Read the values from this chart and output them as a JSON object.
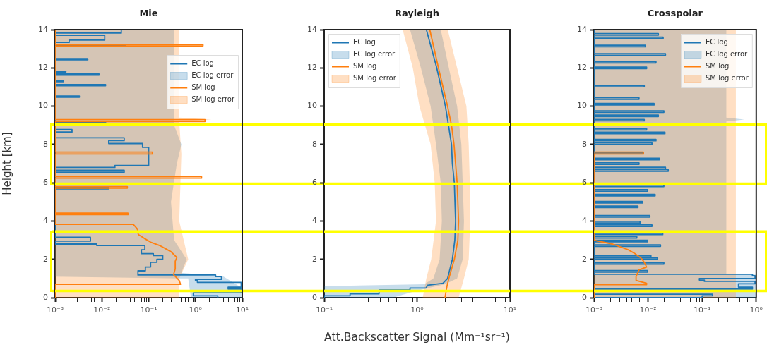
{
  "chart_data": [
    {
      "type": "line",
      "title": "Mie",
      "ylabel": "Height [km]",
      "log": "x",
      "legend": "top right",
      "xlim": [
        0.001,
        10
      ],
      "ylim": [
        0,
        14
      ],
      "yticks": [
        0,
        2,
        4,
        6,
        8,
        10,
        12,
        14
      ],
      "xticks": [
        {
          "value": 0.001,
          "label": "10⁻³"
        },
        {
          "value": 0.002,
          "label": null
        },
        {
          "value": 0.003,
          "label": null
        },
        {
          "value": 0.004,
          "label": null
        },
        {
          "value": 0.005,
          "label": null
        },
        {
          "value": 0.006,
          "label": null
        },
        {
          "value": 0.007,
          "label": null
        },
        {
          "value": 0.008,
          "label": null
        },
        {
          "value": 0.009,
          "label": null
        },
        {
          "value": 0.01,
          "label": "10⁻²"
        },
        {
          "value": 0.02,
          "label": null
        },
        {
          "value": 0.03,
          "label": null
        },
        {
          "value": 0.04,
          "label": null
        },
        {
          "value": 0.05,
          "label": null
        },
        {
          "value": 0.06,
          "label": null
        },
        {
          "value": 0.07,
          "label": null
        },
        {
          "value": 0.08,
          "label": null
        },
        {
          "value": 0.09,
          "label": null
        },
        {
          "value": 0.1,
          "label": "10⁻¹"
        },
        {
          "value": 0.2,
          "label": null
        },
        {
          "value": 0.3,
          "label": null
        },
        {
          "value": 0.4,
          "label": null
        },
        {
          "value": 0.5,
          "label": null
        },
        {
          "value": 0.6,
          "label": null
        },
        {
          "value": 0.7,
          "label": null
        },
        {
          "value": 0.8,
          "label": null
        },
        {
          "value": 0.9,
          "label": null
        },
        {
          "value": 1,
          "label": "10⁰"
        },
        {
          "value": 2,
          "label": null
        },
        {
          "value": 3,
          "label": null
        },
        {
          "value": 4,
          "label": null
        },
        {
          "value": 5,
          "label": null
        },
        {
          "value": 6,
          "label": null
        },
        {
          "value": 7,
          "label": null
        },
        {
          "value": 8,
          "label": null
        },
        {
          "value": 9,
          "label": null
        },
        {
          "value": 10,
          "label": "10¹"
        }
      ],
      "ref_lines": [
        {
          "axis": "y",
          "value": 9.05,
          "color": "#ffff00"
        },
        {
          "axis": "y",
          "value": 5.95,
          "color": "#ffff00"
        },
        {
          "axis": "y",
          "value": 3.45,
          "color": "#ffff00"
        },
        {
          "axis": "y",
          "value": 0.35,
          "color": "#ffff00"
        }
      ],
      "series": [
        {
          "name": "EC log",
          "color": "#1f77b4",
          "x": [
            3,
            3,
            0.9,
            0.9,
            9.5,
            9.5,
            5,
            5,
            9.5,
            9.5,
            1.1,
            1.1,
            1,
            1,
            3.6,
            3.6,
            2.7,
            2.7,
            0.059,
            0.059,
            0.085,
            0.085,
            0.11,
            0.11,
            0.15,
            0.15,
            0.2,
            0.2,
            0.126,
            0.126,
            0.07,
            0.07,
            0.083,
            0.083,
            0.0078,
            0.0078,
            0.001,
            0.001,
            0.0057,
            0.0057,
            0.001,
            0.001,
            0.014,
            0.014,
            0.001,
            0.001,
            0.03,
            0.03,
            0.001,
            0.001,
            0.019,
            0.019,
            0.1,
            0.1,
            0.074,
            0.074,
            0.014,
            0.014,
            0.03,
            0.03,
            0.001,
            0.001,
            0.0023,
            0.0023,
            0.001,
            0.001,
            0.012,
            0.012,
            0.001,
            0.001,
            0.0033,
            0.0033,
            0.001,
            0.001,
            0.012,
            0.012,
            0.001,
            0.001,
            0.0015,
            0.0015,
            0.001,
            0.001,
            0.0087,
            0.0087,
            0.001,
            0.001,
            0.0017,
            0.0017,
            0.001,
            0.001,
            0.005,
            0.005,
            0.001,
            0.001,
            0.032,
            0.032,
            0.001,
            0.001,
            0.002,
            0.002,
            0.0115,
            0.0115,
            0.001,
            0.001,
            0.026,
            0.026
          ],
          "values": [
            0,
            0.1,
            0.1,
            0.25,
            0.25,
            0.45,
            0.45,
            0.55,
            0.55,
            0.8,
            0.8,
            0.9,
            0.9,
            0.95,
            0.95,
            1.1,
            1.1,
            1.18,
            1.18,
            1.4,
            1.4,
            1.6,
            1.6,
            1.85,
            1.85,
            2,
            2,
            2.2,
            2.2,
            2.3,
            2.3,
            2.5,
            2.5,
            2.72,
            2.72,
            2.8,
            2.8,
            2.95,
            2.95,
            3.15,
            3.15,
            5.68,
            5.68,
            5.76,
            5.76,
            6.55,
            6.55,
            6.65,
            6.65,
            6.8,
            6.8,
            6.9,
            6.9,
            7.85,
            7.85,
            8.05,
            8.05,
            8.2,
            8.2,
            8.35,
            8.35,
            8.65,
            8.65,
            8.78,
            8.78,
            9.12,
            9.12,
            9.18,
            9.18,
            10.47,
            10.47,
            10.53,
            10.53,
            11.07,
            11.07,
            11.13,
            11.13,
            11.28,
            11.28,
            11.33,
            11.33,
            11.62,
            11.62,
            11.68,
            11.68,
            11.78,
            11.78,
            11.83,
            11.83,
            12.42,
            12.42,
            12.48,
            12.48,
            13.12,
            13.12,
            13.18,
            13.18,
            13.33,
            13.33,
            13.45,
            13.45,
            13.7,
            13.7,
            13.82,
            13.82,
            14
          ]
        },
        {
          "name": "EC log error",
          "type": "area",
          "color": "#1f77b4",
          "x": [
            10,
            10,
            4,
            0.5,
            0.65,
            0.35,
            0.3,
            0.4,
            0.5,
            0.35,
            0.35,
            0.001,
            0.001,
            0.7,
            0.8
          ],
          "values": [
            0,
            0.5,
            1.1,
            1.3,
            2,
            3,
            5,
            7,
            8,
            9,
            14,
            14,
            1.1,
            1.0,
            0
          ]
        },
        {
          "name": "SM log",
          "color": "#ff7f0e",
          "x": [
            0.001,
            0.001,
            0.48,
            0.45,
            0.34,
            0.37,
            0.37,
            0.4,
            0.3,
            0.18,
            0.11,
            0.08,
            0.06,
            0.057,
            0.047,
            0.001,
            0.001,
            0.036,
            0.036,
            0.001,
            0.001,
            0.035,
            0.035,
            0.001,
            0.001,
            1.35,
            1.35,
            0.001,
            0.001,
            0.12,
            0.12,
            0.001,
            0.001,
            1.6,
            1.6,
            0.001,
            0.001,
            1.45,
            1.45,
            0.001,
            0.001
          ],
          "values": [
            0,
            0.7,
            0.7,
            0.9,
            1.2,
            1.5,
            1.9,
            2.1,
            2.4,
            2.7,
            2.9,
            3.1,
            3.3,
            3.6,
            3.83,
            3.83,
            4.33,
            4.33,
            4.42,
            4.42,
            5.72,
            5.72,
            5.8,
            5.8,
            6.24,
            6.24,
            6.32,
            6.32,
            7.5,
            7.5,
            7.6,
            7.6,
            9.2,
            9.2,
            9.3,
            9.3,
            13.15,
            13.15,
            13.22,
            13.22,
            14
          ]
        },
        {
          "name": "SM log error",
          "type": "area",
          "color": "#ff7f0e",
          "x": [
            0.45,
            0.45,
            0.7,
            0.45,
            0.5,
            0.45,
            2.2,
            0.45,
            0.45,
            0.001,
            0.001
          ],
          "values": [
            0,
            1,
            2,
            4,
            7.5,
            9.2,
            9.3,
            9.4,
            14,
            14,
            0
          ]
        }
      ]
    },
    {
      "type": "line",
      "title": "Rayleigh",
      "xlabel": "Att.Backscatter Signal (Mm⁻¹sr⁻¹)",
      "log": "x",
      "legend": "top left",
      "xlim": [
        0.1,
        10
      ],
      "ylim": [
        0,
        14
      ],
      "yticks": [
        0,
        2,
        4,
        6,
        8,
        10,
        12,
        14
      ],
      "xticks": [
        {
          "value": 0.1,
          "label": "10⁻¹"
        },
        {
          "value": 0.2,
          "label": null
        },
        {
          "value": 0.3,
          "label": null
        },
        {
          "value": 0.4,
          "label": null
        },
        {
          "value": 0.5,
          "label": null
        },
        {
          "value": 0.6,
          "label": null
        },
        {
          "value": 0.7,
          "label": null
        },
        {
          "value": 0.8,
          "label": null
        },
        {
          "value": 0.9,
          "label": null
        },
        {
          "value": 1,
          "label": "10⁰"
        },
        {
          "value": 2,
          "label": null
        },
        {
          "value": 3,
          "label": null
        },
        {
          "value": 4,
          "label": null
        },
        {
          "value": 5,
          "label": null
        },
        {
          "value": 6,
          "label": null
        },
        {
          "value": 7,
          "label": null
        },
        {
          "value": 8,
          "label": null
        },
        {
          "value": 9,
          "label": null
        },
        {
          "value": 10,
          "label": "10¹"
        }
      ],
      "ref_lines": [
        {
          "axis": "y",
          "value": 9.05,
          "color": "#ffff00"
        },
        {
          "axis": "y",
          "value": 5.95,
          "color": "#ffff00"
        },
        {
          "axis": "y",
          "value": 3.45,
          "color": "#ffff00"
        },
        {
          "axis": "y",
          "value": 0.35,
          "color": "#ffff00"
        }
      ],
      "series": [
        {
          "name": "EC log",
          "color": "#1f77b4",
          "x": [
            0.1,
            0.1,
            0.19,
            0.19,
            0.39,
            0.39,
            0.84,
            0.84,
            1.25,
            1.3,
            1.9,
            2.13,
            2.4,
            2.55,
            2.6,
            2.52,
            2.4,
            2.35,
            2.18,
            2.02,
            1.63,
            1.26
          ],
          "values": [
            0,
            0.1,
            0.1,
            0.2,
            0.2,
            0.4,
            0.4,
            0.5,
            0.5,
            0.65,
            0.75,
            1,
            2,
            3,
            4,
            6,
            7,
            8,
            9,
            10,
            12,
            14
          ]
        },
        {
          "name": "EC log error",
          "type": "area",
          "color": "#1f77b4",
          "x": [
            0.55,
            0.9,
            1.3,
            2.0,
            2.7,
            3.1,
            3.2,
            3.1,
            3.0,
            2.7,
            2.2,
            1.8,
            0.84,
            1.1,
            1.4,
            1.6,
            1.8,
            1.85,
            1.75,
            1.5,
            1.2,
            0.1,
            0.1
          ],
          "values": [
            0,
            0.3,
            0.5,
            0.7,
            1,
            2,
            4,
            6,
            8,
            10,
            12,
            14,
            14,
            12,
            10,
            8,
            6,
            4,
            2,
            1,
            0.7,
            0.6,
            0
          ]
        },
        {
          "name": "SM log",
          "color": "#ff7f0e",
          "x": [
            2.0,
            2.1,
            2.2,
            2.52,
            2.75,
            2.8,
            2.7,
            2.6,
            2.5,
            2.35,
            2.13,
            1.7,
            1.37
          ],
          "values": [
            0,
            0.6,
            1,
            2,
            3,
            4,
            6,
            7,
            8,
            9,
            10,
            12,
            14
          ]
        },
        {
          "name": "SM log error",
          "type": "area",
          "color": "#ff7f0e",
          "x": [
            2.8,
            3.2,
            3.6,
            3.74,
            3.7,
            3.6,
            3.4,
            2.7,
            2.14,
            0.7,
            0.9,
            1.06,
            1.4,
            1.55,
            1.6,
            1.42,
            1.26,
            1.15
          ],
          "values": [
            0,
            1,
            2,
            4,
            6,
            8,
            10,
            12,
            14,
            14,
            12,
            10,
            8,
            6,
            4,
            2,
            1,
            0
          ]
        }
      ]
    },
    {
      "type": "line",
      "title": "Crosspolar",
      "log": "x",
      "legend": "top right",
      "xlim": [
        0.001,
        1
      ],
      "ylim": [
        0,
        14
      ],
      "yticks": [
        0,
        2,
        4,
        6,
        8,
        10,
        12,
        14
      ],
      "xticks": [
        {
          "value": 0.001,
          "label": "10⁻³"
        },
        {
          "value": 0.002,
          "label": null
        },
        {
          "value": 0.003,
          "label": null
        },
        {
          "value": 0.004,
          "label": null
        },
        {
          "value": 0.005,
          "label": null
        },
        {
          "value": 0.006,
          "label": null
        },
        {
          "value": 0.007,
          "label": null
        },
        {
          "value": 0.008,
          "label": null
        },
        {
          "value": 0.009,
          "label": null
        },
        {
          "value": 0.01,
          "label": "10⁻²"
        },
        {
          "value": 0.02,
          "label": null
        },
        {
          "value": 0.03,
          "label": null
        },
        {
          "value": 0.04,
          "label": null
        },
        {
          "value": 0.05,
          "label": null
        },
        {
          "value": 0.06,
          "label": null
        },
        {
          "value": 0.07,
          "label": null
        },
        {
          "value": 0.08,
          "label": null
        },
        {
          "value": 0.09,
          "label": null
        },
        {
          "value": 0.1,
          "label": "10⁻¹"
        },
        {
          "value": 0.2,
          "label": null
        },
        {
          "value": 0.3,
          "label": null
        },
        {
          "value": 0.4,
          "label": null
        },
        {
          "value": 0.5,
          "label": null
        },
        {
          "value": 0.6,
          "label": null
        },
        {
          "value": 0.7,
          "label": null
        },
        {
          "value": 0.8,
          "label": null
        },
        {
          "value": 0.9,
          "label": null
        },
        {
          "value": 1,
          "label": "10⁰"
        }
      ],
      "ref_lines": [
        {
          "axis": "y",
          "value": 9.05,
          "color": "#ffff00"
        },
        {
          "axis": "y",
          "value": 5.95,
          "color": "#ffff00"
        },
        {
          "axis": "y",
          "value": 3.45,
          "color": "#ffff00"
        },
        {
          "axis": "y",
          "value": 0.35,
          "color": "#ffff00"
        }
      ],
      "series": [
        {
          "name": "EC log",
          "color": "#1f77b4",
          "x": [
            0.001,
            0.1,
            0.1,
            0.155,
            0.155,
            0.001,
            0.001,
            0.85,
            0.85,
            0.47,
            0.47,
            0.95,
            0.95,
            0.11,
            0.11,
            0.089,
            0.089,
            0.95,
            0.95,
            0.85,
            0.85,
            0.001,
            0.001,
            0.0098,
            0.0098,
            0.001,
            0.001,
            0.0196,
            0.0196,
            0.001,
            0.001,
            0.015,
            0.015,
            0.001,
            0.001,
            0.0113,
            0.0113,
            0.001,
            0.001,
            0.017,
            0.017,
            0.001,
            0.001,
            0.0098,
            0.0098,
            0.001,
            0.001,
            0.0062,
            0.0062,
            0.001,
            0.001,
            0.0187,
            0.0187,
            0.001,
            0.001,
            0.0118,
            0.0118,
            0.001,
            0.001,
            0.0071,
            0.0071,
            0.001,
            0.001,
            0.0108,
            0.0108,
            0.001,
            0.001,
            0.0065,
            0.0065,
            0.001,
            0.001,
            0.0078,
            0.0078,
            0.001,
            0.001,
            0.0135,
            0.0135,
            0.001,
            0.001,
            0.0098,
            0.0098,
            0.001,
            0.001,
            0.0196,
            0.0196,
            0.001,
            0.001,
            0.0236,
            0.0236,
            0.001,
            0.001,
            0.021,
            0.021,
            0.001,
            0.001,
            0.0068,
            0.0068,
            0.001,
            0.001,
            0.0162,
            0.0162,
            0.001,
            0.001,
            0.0082,
            0.0082,
            0.001,
            0.001,
            0.0118,
            0.0118,
            0.001,
            0.001,
            0.014,
            0.014,
            0.001,
            0.001,
            0.0205,
            0.0205,
            0.001,
            0.001,
            0.0094,
            0.0094,
            0.001,
            0.001,
            0.0085,
            0.0085,
            0.001,
            0.001,
            0.0155,
            0.0155,
            0.001,
            0.001,
            0.0196,
            0.0196,
            0.001,
            0.001,
            0.0129,
            0.0129,
            0.001,
            0.001,
            0.0068,
            0.0068,
            0.001,
            0.001,
            0.0085,
            0.0085,
            0.001,
            0.001,
            0.0094,
            0.0094,
            0.001,
            0.001,
            0.014,
            0.014,
            0.001,
            0.001,
            0.021,
            0.021,
            0.001,
            0.001,
            0.0089,
            0.0089,
            0.001,
            0.001,
            0.019,
            0.019,
            0.001,
            0.001,
            0.0155,
            0.0155,
            0.001,
            0.001
          ],
          "values": [
            0,
            0,
            0.1,
            0.1,
            0.18,
            0.18,
            0.45,
            0.45,
            0.55,
            0.55,
            0.72,
            0.72,
            0.85,
            0.85,
            0.92,
            0.92,
            1.0,
            1.0,
            1.15,
            1.15,
            1.22,
            1.22,
            1.33,
            1.33,
            1.41,
            1.41,
            1.75,
            1.75,
            1.83,
            1.83,
            2.0,
            2.0,
            2.08,
            2.08,
            2.12,
            2.12,
            2.2,
            2.2,
            2.68,
            2.68,
            2.76,
            2.76,
            2.92,
            2.92,
            3.0,
            3.0,
            3.11,
            3.11,
            3.19,
            3.19,
            3.29,
            3.29,
            3.37,
            3.37,
            3.72,
            3.72,
            3.8,
            3.8,
            3.9,
            3.9,
            3.98,
            3.98,
            4.21,
            4.21,
            4.29,
            4.29,
            4.7,
            4.7,
            4.78,
            4.78,
            4.94,
            4.94,
            5.02,
            5.02,
            5.31,
            5.31,
            5.39,
            5.39,
            5.56,
            5.56,
            5.64,
            5.64,
            5.8,
            5.8,
            5.88,
            5.88,
            6.6,
            6.6,
            6.68,
            6.68,
            6.73,
            6.73,
            6.81,
            6.81,
            6.96,
            6.96,
            7.04,
            7.04,
            7.2,
            7.2,
            7.28,
            7.28,
            7.51,
            7.51,
            7.59,
            7.59,
            8.0,
            8.0,
            8.08,
            8.08,
            8.19,
            8.19,
            8.27,
            8.27,
            8.56,
            8.56,
            8.64,
            8.64,
            8.76,
            8.76,
            8.84,
            8.84,
            9.23,
            9.23,
            9.31,
            9.31,
            9.46,
            9.46,
            9.54,
            9.54,
            9.68,
            9.68,
            9.76,
            9.76,
            10.06,
            10.06,
            10.14,
            10.14,
            10.36,
            10.36,
            10.44,
            10.44,
            11.01,
            11.01,
            11.09,
            11.09,
            11.96,
            11.96,
            12.04,
            12.04,
            12.26,
            12.26,
            12.34,
            12.34,
            12.66,
            12.66,
            12.74,
            12.74,
            13.1,
            13.1,
            13.18,
            13.18,
            13.53,
            13.53,
            13.61,
            13.61,
            13.71,
            13.71,
            13.79,
            13.79,
            14
          ]
        },
        {
          "name": "EC log error",
          "type": "area",
          "color": "#1f77b4",
          "x": [
            1,
            1,
            0.28,
            0.28,
            0.6,
            0.28,
            0.28,
            0.001,
            0.001
          ],
          "values": [
            0,
            1.2,
            1.25,
            9.2,
            9.3,
            9.4,
            14,
            14,
            0
          ]
        },
        {
          "name": "SM log",
          "color": "#ff7f0e",
          "x": [
            0.001,
            0.001,
            0.0094,
            0.0094,
            0.006,
            0.006,
            0.0068,
            0.0094,
            0.0085,
            0.0075,
            0.0057,
            0.0043,
            0.0022,
            0.001,
            0.001,
            0.0082,
            0.0082,
            0.001
          ],
          "values": [
            0,
            0.68,
            0.68,
            0.75,
            0.9,
            1.1,
            1.45,
            1.6,
            1.85,
            2.05,
            2.3,
            2.5,
            2.8,
            3.0,
            7.5,
            7.5,
            7.6,
            7.6
          ]
        },
        {
          "name": "SM log error",
          "type": "area",
          "color": "#ff7f0e",
          "x": [
            0.42,
            0.42,
            0.001,
            0.001
          ],
          "values": [
            0,
            14,
            14,
            0
          ]
        }
      ]
    }
  ]
}
